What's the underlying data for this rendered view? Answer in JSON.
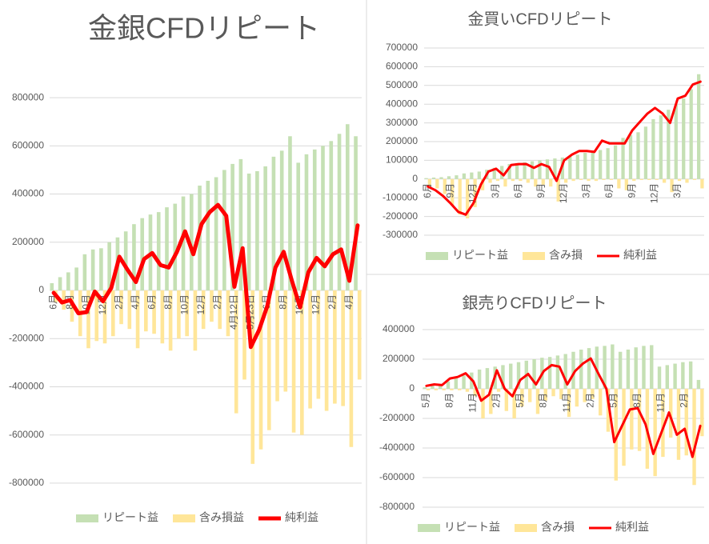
{
  "chart_data": [
    {
      "type": "combo",
      "title": "金銀CFDリピート",
      "categories": [
        "6月",
        null,
        "8月",
        null,
        "10月",
        null,
        "12月",
        null,
        "2月",
        null,
        "4月",
        null,
        "6月",
        null,
        "8月",
        null,
        "10月",
        null,
        "12月",
        null,
        "2月",
        null,
        "4月12日",
        null,
        "5月23日",
        null,
        "6月",
        null,
        "8月",
        null,
        "10月",
        null,
        "12月",
        null,
        "2月",
        null,
        "4月",
        null
      ],
      "ylim": [
        -870000,
        890000
      ],
      "yticks": [
        -800000,
        -600000,
        -400000,
        -200000,
        0,
        200000,
        400000,
        600000,
        800000
      ],
      "grid": true,
      "series": [
        {
          "name": "リピート益",
          "type": "bar",
          "color": "#c5e0b4",
          "values": [
            30000,
            55000,
            75000,
            95000,
            150000,
            170000,
            175000,
            200000,
            220000,
            245000,
            275000,
            300000,
            315000,
            325000,
            345000,
            360000,
            390000,
            400000,
            435000,
            455000,
            470000,
            500000,
            525000,
            545000,
            485000,
            495000,
            515000,
            555000,
            580000,
            640000,
            530000,
            565000,
            585000,
            600000,
            620000,
            650000,
            690000,
            640000
          ]
        },
        {
          "name": "含み損益",
          "type": "bar",
          "color": "#ffe699",
          "values": [
            -50000,
            -80000,
            -130000,
            -190000,
            -240000,
            -210000,
            -220000,
            -190000,
            -140000,
            -160000,
            -240000,
            -170000,
            -180000,
            -220000,
            -250000,
            -200000,
            -190000,
            -250000,
            -160000,
            -130000,
            -160000,
            -190000,
            -510000,
            -370000,
            -720000,
            -660000,
            -580000,
            -460000,
            -420000,
            -590000,
            -600000,
            -490000,
            -450000,
            -500000,
            -470000,
            -480000,
            -650000,
            -370000
          ]
        },
        {
          "name": "純利益",
          "type": "line",
          "color": "#ff0000",
          "values": [
            -10000,
            -50000,
            -40000,
            -95000,
            -90000,
            -5000,
            -45000,
            10000,
            140000,
            85000,
            35000,
            130000,
            155000,
            105000,
            95000,
            160000,
            245000,
            150000,
            275000,
            325000,
            355000,
            310000,
            15000,
            175000,
            -235000,
            -165000,
            -65000,
            95000,
            160000,
            40000,
            -70000,
            75000,
            135000,
            100000,
            150000,
            170000,
            40000,
            270000
          ]
        }
      ]
    },
    {
      "type": "combo",
      "title": "金買いCFDリピート",
      "categories": [
        "6月",
        null,
        null,
        "9月",
        null,
        null,
        "12月",
        null,
        null,
        "3月",
        null,
        null,
        "6月",
        null,
        null,
        "9月",
        null,
        null,
        "12月",
        null,
        null,
        "3月",
        null,
        null,
        "6月",
        null,
        null,
        "9月",
        null,
        null,
        "12月",
        null,
        null,
        "3月",
        null,
        null,
        null
      ],
      "ylim": [
        -300000,
        700000
      ],
      "yticks": [
        -300000,
        -200000,
        -100000,
        0,
        100000,
        200000,
        300000,
        400000,
        500000,
        600000,
        700000
      ],
      "grid": true,
      "series": [
        {
          "name": "リピート益",
          "type": "bar",
          "color": "#c5e0b4",
          "values": [
            5000,
            8000,
            10000,
            15000,
            20000,
            30000,
            35000,
            40000,
            50000,
            60000,
            70000,
            80000,
            85000,
            90000,
            95000,
            100000,
            105000,
            110000,
            115000,
            120000,
            130000,
            140000,
            150000,
            155000,
            165000,
            180000,
            220000,
            235000,
            250000,
            280000,
            320000,
            340000,
            370000,
            400000,
            430000,
            480000,
            560000
          ]
        },
        {
          "name": "含み損",
          "type": "bar",
          "color": "#ffe699",
          "values": [
            -40000,
            -50000,
            -80000,
            -140000,
            -190000,
            -210000,
            -150000,
            -60000,
            -20000,
            -10000,
            -40000,
            -10000,
            -10000,
            -20000,
            -40000,
            -30000,
            -40000,
            -120000,
            -20000,
            -10000,
            -5000,
            -10000,
            -10000,
            -5000,
            -5000,
            -50000,
            -60000,
            -10000,
            -5000,
            -5000,
            -5000,
            -20000,
            -70000,
            -10000,
            -20000,
            -5000,
            -50000
          ]
        },
        {
          "name": "純利益",
          "type": "line",
          "color": "#ff0000",
          "values": [
            -40000,
            -60000,
            -90000,
            -130000,
            -175000,
            -190000,
            -130000,
            -30000,
            40000,
            55000,
            20000,
            75000,
            80000,
            80000,
            60000,
            80000,
            65000,
            -10000,
            100000,
            130000,
            150000,
            150000,
            145000,
            205000,
            190000,
            190000,
            190000,
            260000,
            305000,
            350000,
            380000,
            350000,
            300000,
            430000,
            445000,
            505000,
            520000
          ]
        }
      ]
    },
    {
      "type": "combo",
      "title": "銀売りCFDリピート",
      "categories": [
        "5月",
        null,
        null,
        "8月",
        null,
        null,
        "11月",
        null,
        null,
        "2月",
        null,
        null,
        "5月",
        null,
        null,
        "8月",
        null,
        null,
        "11月",
        null,
        null,
        "2月",
        null,
        null,
        "5月",
        null,
        null,
        "8月",
        null,
        null,
        "11月",
        null,
        null,
        "2月",
        null,
        null
      ],
      "ylim": [
        -800000,
        400000
      ],
      "yticks": [
        -800000,
        -600000,
        -400000,
        -200000,
        0,
        200000,
        400000
      ],
      "grid": true,
      "series": [
        {
          "name": "リピート益",
          "type": "bar",
          "color": "#c5e0b4",
          "values": [
            10000,
            20000,
            30000,
            50000,
            70000,
            90000,
            110000,
            130000,
            140000,
            150000,
            160000,
            170000,
            180000,
            190000,
            200000,
            210000,
            215000,
            225000,
            235000,
            250000,
            265000,
            275000,
            285000,
            290000,
            300000,
            250000,
            265000,
            280000,
            290000,
            295000,
            150000,
            160000,
            170000,
            180000,
            185000,
            60000
          ]
        },
        {
          "name": "含み損",
          "type": "bar",
          "color": "#ffe699",
          "values": [
            -10000,
            -10000,
            -10000,
            -10000,
            -10000,
            -20000,
            -50000,
            -200000,
            -170000,
            -20000,
            -150000,
            -200000,
            -120000,
            -90000,
            -170000,
            -80000,
            -50000,
            -70000,
            -190000,
            -120000,
            -90000,
            -70000,
            -180000,
            -290000,
            -620000,
            -520000,
            -410000,
            -420000,
            -540000,
            -590000,
            -460000,
            -330000,
            -480000,
            -450000,
            -650000,
            -320000
          ]
        },
        {
          "name": "純利益",
          "type": "line",
          "color": "#ff0000",
          "values": [
            20000,
            30000,
            25000,
            70000,
            80000,
            105000,
            50000,
            -80000,
            -40000,
            125000,
            0,
            -50000,
            60000,
            100000,
            30000,
            120000,
            160000,
            150000,
            30000,
            120000,
            170000,
            205000,
            100000,
            0,
            -360000,
            -250000,
            -140000,
            -130000,
            -240000,
            -440000,
            -300000,
            -160000,
            -310000,
            -270000,
            -460000,
            -250000
          ]
        }
      ]
    }
  ]
}
